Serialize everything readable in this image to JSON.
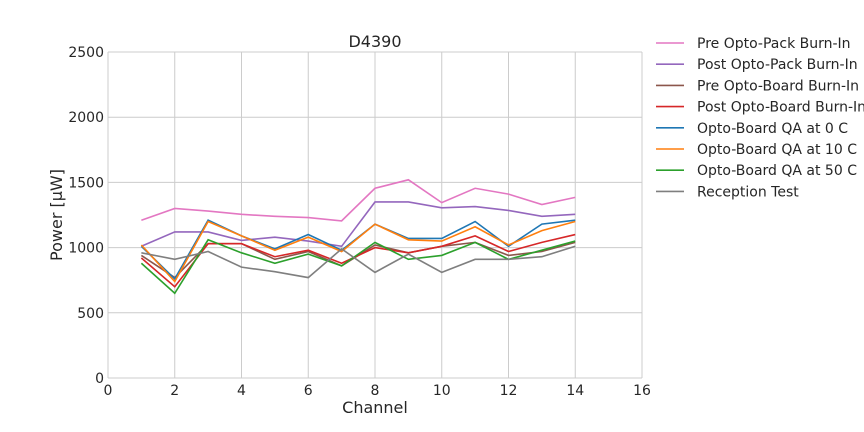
{
  "chart_data": {
    "type": "line",
    "title": "D4390",
    "xlabel": "Channel",
    "ylabel": "Power [µW]",
    "xlim": [
      0,
      16
    ],
    "ylim": [
      0,
      2500
    ],
    "xticks": [
      0,
      2,
      4,
      6,
      8,
      10,
      12,
      14,
      16
    ],
    "yticks": [
      0,
      500,
      1000,
      1500,
      2000,
      2500
    ],
    "grid": true,
    "legend_position": "outside-right",
    "x": [
      1,
      2,
      3,
      4,
      5,
      6,
      7,
      8,
      9,
      10,
      11,
      12,
      13,
      14
    ],
    "series": [
      {
        "name": "Pre Opto-Pack Burn-In",
        "color": "#e377c2",
        "values": [
          1210,
          1300,
          1280,
          1255,
          1240,
          1230,
          1205,
          1455,
          1520,
          1345,
          1455,
          1410,
          1330,
          1385
        ]
      },
      {
        "name": "Post Opto-Pack Burn-In",
        "color": "#9467bd",
        "values": [
          1010,
          1120,
          1120,
          1055,
          1080,
          1050,
          1010,
          1350,
          1350,
          1305,
          1315,
          1285,
          1240,
          1255
        ]
      },
      {
        "name": "Pre Opto-Board Burn-In",
        "color": "#8c564b",
        "values": [
          940,
          770,
          1030,
          1030,
          910,
          970,
          860,
          1020,
          960,
          1010,
          1040,
          940,
          970,
          1040
        ]
      },
      {
        "name": "Post Opto-Board Burn-In",
        "color": "#d62728",
        "values": [
          920,
          700,
          1030,
          1030,
          930,
          980,
          880,
          1000,
          960,
          1010,
          1090,
          970,
          1040,
          1100
        ]
      },
      {
        "name": "Opto-Board QA at 0 C",
        "color": "#1f77b4",
        "values": [
          1010,
          760,
          1210,
          1090,
          990,
          1100,
          980,
          1180,
          1070,
          1070,
          1200,
          1010,
          1180,
          1210
        ]
      },
      {
        "name": "Opto-Board QA at 10 C",
        "color": "#ff7f0e",
        "values": [
          1020,
          740,
          1200,
          1090,
          980,
          1080,
          970,
          1180,
          1060,
          1050,
          1160,
          1020,
          1130,
          1200
        ]
      },
      {
        "name": "Opto-Board QA at 50 C",
        "color": "#2ca02c",
        "values": [
          880,
          650,
          1060,
          960,
          880,
          950,
          860,
          1040,
          910,
          940,
          1040,
          910,
          980,
          1050
        ]
      },
      {
        "name": "Reception Test",
        "color": "#7f7f7f",
        "values": [
          960,
          910,
          970,
          850,
          815,
          770,
          990,
          810,
          950,
          810,
          910,
          910,
          930,
          1010
        ]
      }
    ]
  }
}
